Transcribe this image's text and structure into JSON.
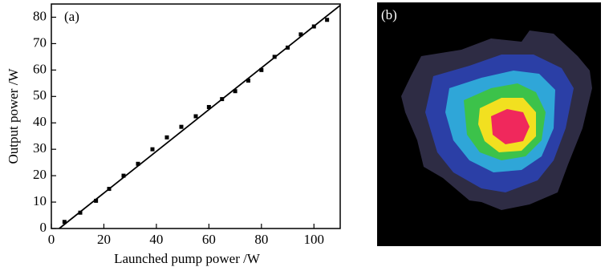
{
  "chart_data": {
    "type": "scatter",
    "annotation": "(a)",
    "x_label": "Launched pump power /W",
    "y_label": "Output power /W",
    "x": [
      5,
      11,
      17,
      22,
      27.5,
      33,
      38.5,
      44,
      49.5,
      55,
      60,
      65,
      70,
      75,
      80,
      85,
      90,
      95,
      100,
      105
    ],
    "values": [
      2.5,
      6,
      10.5,
      15,
      20,
      24.5,
      30,
      34.5,
      38.5,
      42.5,
      46,
      49,
      52,
      56,
      60,
      65,
      68.5,
      73.5,
      76.5,
      79
    ],
    "color": "#000000",
    "fit": {
      "x": [
        3,
        110
      ],
      "values": [
        0,
        84.5
      ],
      "color": "#000000"
    },
    "xlim": [
      0,
      110
    ],
    "ylim": [
      0,
      85
    ],
    "xticks": [
      0,
      20,
      40,
      60,
      80,
      100
    ],
    "yticks": [
      0,
      10,
      20,
      30,
      40,
      50,
      60,
      70,
      80
    ]
  },
  "image": {
    "label": "(b)"
  }
}
